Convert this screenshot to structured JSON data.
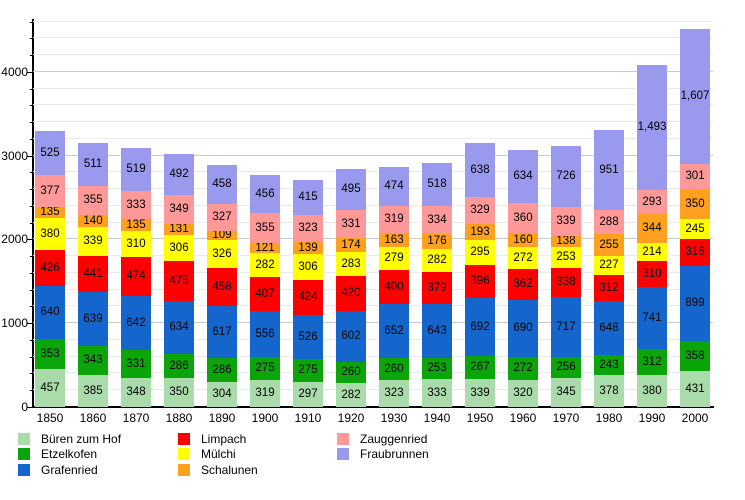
{
  "chart_data": {
    "type": "bar",
    "stacked": true,
    "title": "",
    "xlabel": "",
    "ylabel": "",
    "categories": [
      "1850",
      "1860",
      "1870",
      "1880",
      "1890",
      "1900",
      "1910",
      "1920",
      "1930",
      "1940",
      "1950",
      "1960",
      "1970",
      "1980",
      "1990",
      "2000"
    ],
    "series": [
      {
        "name": "Büren zum Hof",
        "color": "#AADBAA",
        "values": [
          457,
          385,
          348,
          350,
          304,
          319,
          297,
          282,
          323,
          333,
          339,
          320,
          345,
          378,
          380,
          431
        ]
      },
      {
        "name": "Etzelkofen",
        "color": "#09A509",
        "values": [
          353,
          343,
          331,
          286,
          286,
          275,
          275,
          260,
          260,
          253,
          267,
          272,
          256,
          243,
          312,
          358
        ]
      },
      {
        "name": "Grafenried",
        "color": "#1566CC",
        "values": [
          640,
          639,
          642,
          634,
          617,
          556,
          526,
          602,
          652,
          643,
          692,
          690,
          717,
          648,
          741,
          899
        ]
      },
      {
        "name": "Limpach",
        "color": "#FF0000",
        "values": [
          426,
          441,
          474,
          475,
          458,
          407,
          424,
          420,
          400,
          379,
          396,
          362,
          338,
          312,
          310,
          316
        ]
      },
      {
        "name": "Mülchi",
        "color": "#FFFF00",
        "values": [
          380,
          339,
          310,
          306,
          326,
          282,
          306,
          283,
          279,
          282,
          295,
          272,
          253,
          227,
          214,
          245
        ]
      },
      {
        "name": "Schalunen",
        "color": "#FFA020",
        "values": [
          135,
          140,
          135,
          131,
          109,
          121,
          139,
          174,
          163,
          176,
          193,
          160,
          138,
          255,
          344,
          350
        ]
      },
      {
        "name": "Zauggenried",
        "color": "#FF9999",
        "values": [
          377,
          355,
          333,
          349,
          327,
          355,
          323,
          331,
          319,
          334,
          329,
          360,
          339,
          288,
          293,
          301
        ]
      },
      {
        "name": "Fraubrunnen",
        "color": "#9999EE",
        "values": [
          525,
          511,
          519,
          492,
          458,
          456,
          415,
          495,
          474,
          518,
          638,
          634,
          726,
          951,
          1493,
          1607
        ]
      }
    ],
    "ylim": [
      0,
      4620
    ],
    "y_major_step": 1000,
    "y_minor_step": 200,
    "y_tick_labels": [
      "0",
      "1000",
      "2000",
      "3000",
      "4000"
    ],
    "grid": true,
    "value_labels": "inside-segments",
    "legend_position": "bottom",
    "legend_columns": [
      [
        0,
        1,
        2
      ],
      [
        3,
        4,
        5
      ],
      [
        6,
        7
      ]
    ]
  }
}
